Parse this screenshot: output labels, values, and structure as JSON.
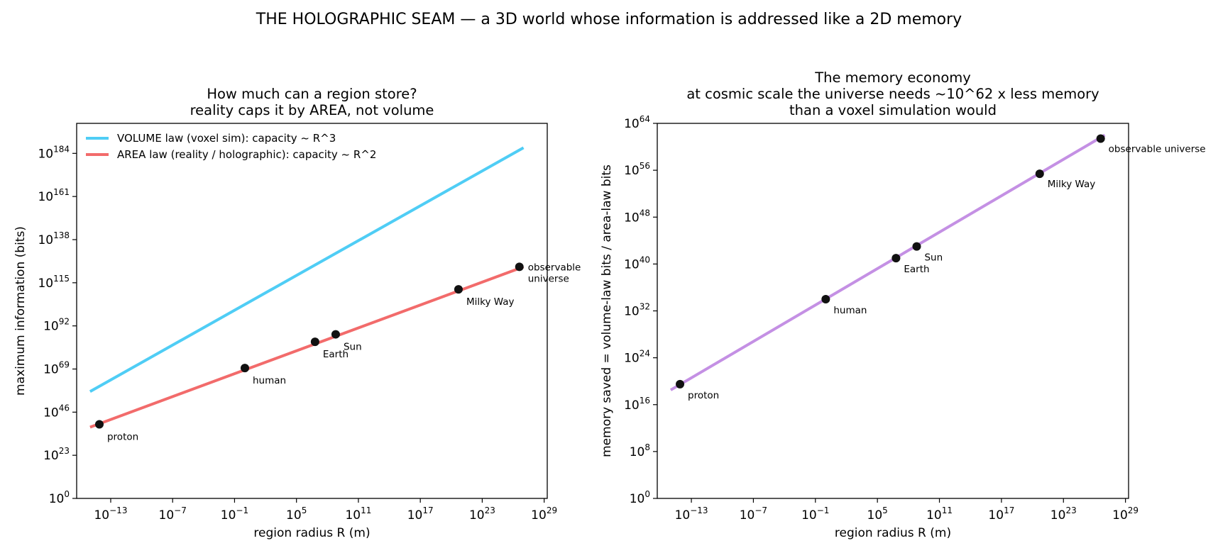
{
  "figure": {
    "suptitle": "THE HOLOGRAPHIC SEAM — a 3D world whose information is addressed like a 2D memory"
  },
  "chart_data": [
    {
      "type": "line",
      "title_lines": [
        "How much can a region store?",
        "reality caps it by AREA, not volume"
      ],
      "xlabel": "region radius  R  (m)",
      "ylabel": "maximum information  (bits)",
      "x_scale": "log",
      "y_scale": "log",
      "xlim_exp": [
        -16.3,
        29.3
      ],
      "ylim_exp": [
        0,
        200
      ],
      "x_ticks": [
        "10^-13",
        "10^-7",
        "10^-1",
        "10^5",
        "10^11",
        "10^17",
        "10^23",
        "10^29"
      ],
      "y_ticks": [
        "10^0",
        "10^23",
        "10^46",
        "10^69",
        "10^92",
        "10^115",
        "10^138",
        "10^161",
        "10^184"
      ],
      "grid": false,
      "legend_position": "upper-left",
      "series": [
        {
          "name": "VOLUME law  (voxel sim): capacity ~ R^3",
          "color": "#4fcdf5",
          "x_exp": [
            -15,
            27
          ],
          "y_exp": [
            57,
            187
          ]
        },
        {
          "name": "AREA law  (reality / holographic): capacity ~ R^2",
          "color": "#f26b6b",
          "x_exp": [
            -15,
            27
          ],
          "y_exp": [
            38,
            123.5
          ]
        }
      ],
      "points": [
        {
          "label": "proton",
          "x_exp": -14.1,
          "y_exp": 39.5
        },
        {
          "label": "human",
          "x_exp": 0,
          "y_exp": 69.5
        },
        {
          "label": "Earth",
          "x_exp": 6.8,
          "y_exp": 83.5
        },
        {
          "label": "Sun",
          "x_exp": 8.8,
          "y_exp": 87.5
        },
        {
          "label": "Milky Way",
          "x_exp": 20.7,
          "y_exp": 111.5
        },
        {
          "label": "observable universe",
          "label_lines": [
            "observable",
            "universe"
          ],
          "x_exp": 26.6,
          "y_exp": 123.5
        }
      ]
    },
    {
      "type": "line",
      "title_lines": [
        "The memory economy",
        "at cosmic scale the universe needs ~10^62 x less memory",
        "than a voxel simulation would"
      ],
      "xlabel": "region radius  R  (m)",
      "ylabel": "memory saved  =  volume-law bits / area-law bits",
      "x_scale": "log",
      "y_scale": "log",
      "xlim_exp": [
        -16.3,
        29.3
      ],
      "ylim_exp": [
        0,
        64
      ],
      "x_ticks": [
        "10^-13",
        "10^-7",
        "10^-1",
        "10^5",
        "10^11",
        "10^17",
        "10^23",
        "10^29"
      ],
      "y_ticks": [
        "10^0",
        "10^8",
        "10^16",
        "10^24",
        "10^32",
        "10^40",
        "10^48",
        "10^56",
        "10^64"
      ],
      "grid": false,
      "series": [
        {
          "color": "#c490e4",
          "x_exp": [
            -15,
            27
          ],
          "y_exp": [
            18.5,
            62
          ]
        }
      ],
      "points": [
        {
          "label": "proton",
          "x_exp": -14.1,
          "y_exp": 19.5
        },
        {
          "label": "human",
          "x_exp": 0,
          "y_exp": 34
        },
        {
          "label": "Earth",
          "x_exp": 6.8,
          "y_exp": 41
        },
        {
          "label": "Sun",
          "x_exp": 8.8,
          "y_exp": 43
        },
        {
          "label": "Milky Way",
          "x_exp": 20.7,
          "y_exp": 55.4
        },
        {
          "label": "observable universe",
          "x_exp": 26.6,
          "y_exp": 61.4
        }
      ]
    }
  ]
}
